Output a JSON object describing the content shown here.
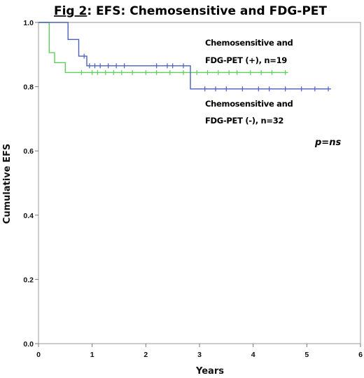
{
  "chart_data": {
    "type": "line",
    "title_prefix": "Fig 2",
    "title_rest": ": EFS: Chemosensitive and FDG-PET",
    "xlabel": "Years",
    "ylabel": "Cumulative EFS",
    "xlim": [
      0,
      6
    ],
    "ylim": [
      0,
      1.0
    ],
    "x_ticks": [
      "0",
      "1",
      "2",
      "3",
      "4",
      "5",
      "6"
    ],
    "y_ticks": [
      "0.0",
      "0.2",
      "0.4",
      "0.6",
      "0.8",
      "1.0"
    ],
    "grid": false,
    "series": [
      {
        "name_line1": "Chemosensitive and",
        "name_line2": "FDG-PET (+), n=19",
        "color": "#4a5fc1",
        "steps": [
          [
            0,
            1.0
          ],
          [
            0.55,
            1.0
          ],
          [
            0.55,
            0.947
          ],
          [
            0.75,
            0.947
          ],
          [
            0.75,
            0.895
          ],
          [
            0.9,
            0.895
          ],
          [
            0.9,
            0.865
          ],
          [
            2.83,
            0.865
          ],
          [
            2.83,
            0.793
          ],
          [
            5.45,
            0.793
          ]
        ],
        "censor_x": [
          0.85,
          0.95,
          1.05,
          1.15,
          1.3,
          1.45,
          1.6,
          2.2,
          2.4,
          2.5,
          2.7,
          3.1,
          3.3,
          3.5,
          3.8,
          4.1,
          4.3,
          4.6,
          4.9,
          5.15,
          5.4
        ]
      },
      {
        "name_line1": "Chemosensitive and",
        "name_line2": "FDG-PET (-), n=32",
        "color": "#5ecf5e",
        "steps": [
          [
            0,
            1.0
          ],
          [
            0.2,
            1.0
          ],
          [
            0.2,
            0.906
          ],
          [
            0.3,
            0.906
          ],
          [
            0.3,
            0.875
          ],
          [
            0.5,
            0.875
          ],
          [
            0.5,
            0.844
          ],
          [
            4.65,
            0.844
          ]
        ],
        "censor_x": [
          0.8,
          1.0,
          1.1,
          1.25,
          1.4,
          1.55,
          1.75,
          2.0,
          2.2,
          2.45,
          2.7,
          2.95,
          3.15,
          3.35,
          3.55,
          3.7,
          3.95,
          4.15,
          4.35,
          4.6
        ]
      }
    ],
    "annotation_p": "p=ns"
  }
}
